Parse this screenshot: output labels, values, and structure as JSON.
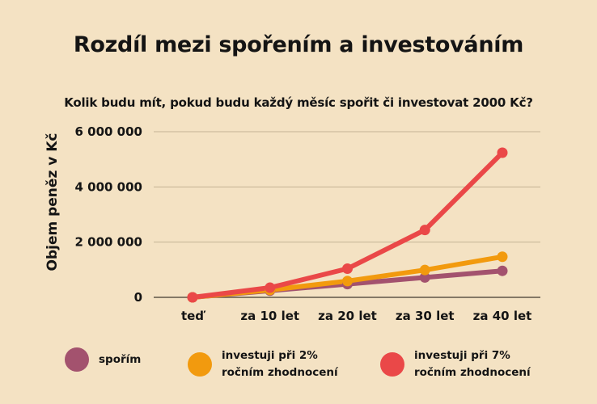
{
  "title": "Rozdíl mezi spořením a investováním",
  "subtitle": "Kolik budu mít, pokud budu každý měsíc spořit či investovat 2000 Kč?",
  "chart_data": {
    "type": "line",
    "title": "Rozdíl mezi spořením a investováním",
    "subtitle": "Kolik budu mít, pokud budu každý měsíc spořit či investovat 2000 Kč?",
    "ylabel": "Objem peněz v Kč",
    "xlabel": "",
    "categories": [
      "teď",
      "za 10 let",
      "za 20 let",
      "za 30 let",
      "za 40 let"
    ],
    "y_ticks": [
      "0",
      "2 000 000",
      "4 000 000",
      "6 000 000"
    ],
    "y_tick_values": [
      0,
      2000000,
      4000000,
      6000000
    ],
    "ylim": [
      0,
      6000000
    ],
    "grid": "horizontal",
    "legend_position": "bottom",
    "series": [
      {
        "name": "spořím",
        "color": "#a3526e",
        "values": [
          0,
          240000,
          480000,
          720000,
          960000
        ]
      },
      {
        "name": "investuji při 2%\nročním zhodnocení",
        "color": "#f29a0e",
        "values": [
          0,
          265000,
          590000,
          990000,
          1470000
        ]
      },
      {
        "name": "investuji při 7%\nročním zhodnocení",
        "color": "#ea4848",
        "values": [
          0,
          350000,
          1040000,
          2440000,
          5240000
        ]
      }
    ]
  }
}
